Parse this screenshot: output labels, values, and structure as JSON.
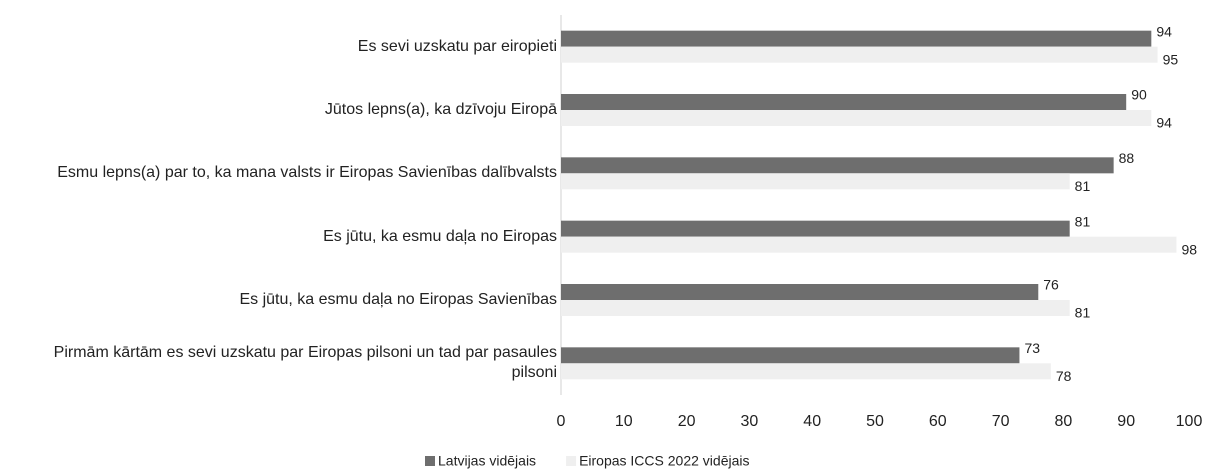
{
  "chart_data": {
    "type": "bar",
    "orientation": "horizontal",
    "categories": [
      "Es sevi uzskatu par eiropieti",
      "Jūtos lepns(a), ka dzīvoju Eiropā",
      "Esmu lepns(a) par to, ka mana valsts ir Eiropas Savienības dalībvalsts",
      "Es jūtu, ka esmu daļa no Eiropas",
      "Es jūtu, ka esmu daļa no Eiropas Savienības",
      "Pirmām kārtām es sevi uzskatu par Eiropas pilsoni un tad par pasaules pilsoni"
    ],
    "series": [
      {
        "name": "Latvijas vidējais",
        "color": "#6e6e6e",
        "values": [
          94,
          90,
          88,
          81,
          76,
          73
        ]
      },
      {
        "name": "Eiropas ICCS 2022 vidējais",
        "color": "#efefef",
        "values": [
          95,
          94,
          81,
          98,
          81,
          78
        ]
      }
    ],
    "xlim": [
      0,
      100
    ],
    "xticks": [
      0,
      10,
      20,
      30,
      40,
      50,
      60,
      70,
      80,
      90,
      100
    ],
    "legend": "bottom",
    "grid": false
  }
}
